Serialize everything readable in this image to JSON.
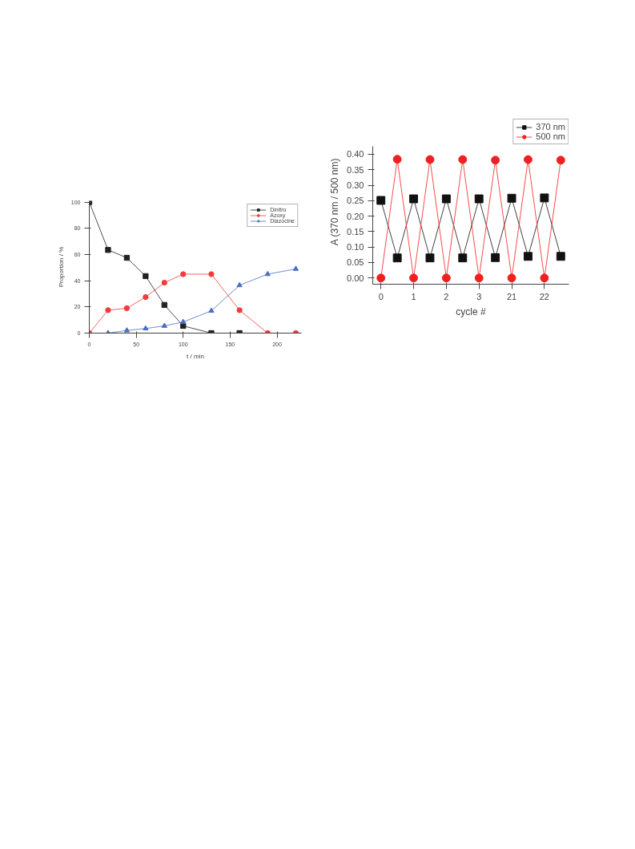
{
  "chart_data": [
    {
      "type": "line",
      "xlabel": "t / min",
      "ylabel": "Proportion / %",
      "xlim": [
        0,
        226
      ],
      "ylim": [
        0,
        101
      ],
      "xticks": [
        0,
        50,
        100,
        150,
        200
      ],
      "yticks": [
        0,
        20,
        40,
        60,
        80,
        100
      ],
      "grid": false,
      "legend": "top right",
      "line_style": "solid",
      "series": [
        {
          "name": "Dinitro",
          "color": "#222222",
          "marker": "square",
          "x": [
            0,
            20,
            40,
            60,
            80,
            100,
            130,
            160
          ],
          "values": [
            100,
            63.5,
            57.5,
            43.5,
            21.5,
            5.5,
            0,
            0
          ]
        },
        {
          "name": "Azoxy",
          "color": "#f03c3c",
          "marker": "circle",
          "x": [
            0,
            20,
            40,
            60,
            80,
            100,
            130,
            160,
            190,
            220
          ],
          "values": [
            0,
            17.5,
            19,
            27.5,
            38.5,
            45,
            45,
            17.5,
            0,
            0
          ]
        },
        {
          "name": "Diazocine",
          "color": "#4a70c0",
          "marker": "triangle",
          "x": [
            20,
            40,
            60,
            80,
            100,
            130,
            160,
            190,
            220
          ],
          "values": [
            0,
            2,
            3.5,
            5.5,
            8.5,
            17,
            36.5,
            45,
            49
          ]
        }
      ]
    },
    {
      "type": "line",
      "xlabel": "cycle #",
      "ylabel": "A (370 nm / 500 nm)",
      "ylim": [
        -0.02,
        0.425
      ],
      "yticks": [
        {
          "value": 0,
          "label": "0.00"
        },
        {
          "value": 0.05,
          "label": "0.05"
        },
        {
          "value": 0.1,
          "label": "0.10"
        },
        {
          "value": 0.15,
          "label": "0.15"
        },
        {
          "value": 0.2,
          "label": "0.20"
        },
        {
          "value": 0.25,
          "label": "0.25"
        },
        {
          "value": 0.3,
          "label": "0.30"
        },
        {
          "value": 0.35,
          "label": "0.35"
        },
        {
          "value": 0.4,
          "label": "0.40"
        }
      ],
      "grid": false,
      "legend": "top",
      "line_style": "solid",
      "categories": [
        "0",
        null,
        "1",
        null,
        "2",
        null,
        "3",
        null,
        "21",
        null,
        "22",
        null
      ],
      "series": [
        {
          "name": "370 nm",
          "color": "#111111",
          "marker": "square",
          "values": [
            0.251,
            0.065,
            0.256,
            0.065,
            0.256,
            0.065,
            0.256,
            0.066,
            0.258,
            0.07,
            0.259,
            0.07
          ]
        },
        {
          "name": "500 nm",
          "color": "#f02020",
          "marker": "circle",
          "values": [
            0,
            0.384,
            0,
            0.383,
            0,
            0.383,
            0,
            0.381,
            0,
            0.383,
            0,
            0.381
          ]
        }
      ]
    }
  ]
}
